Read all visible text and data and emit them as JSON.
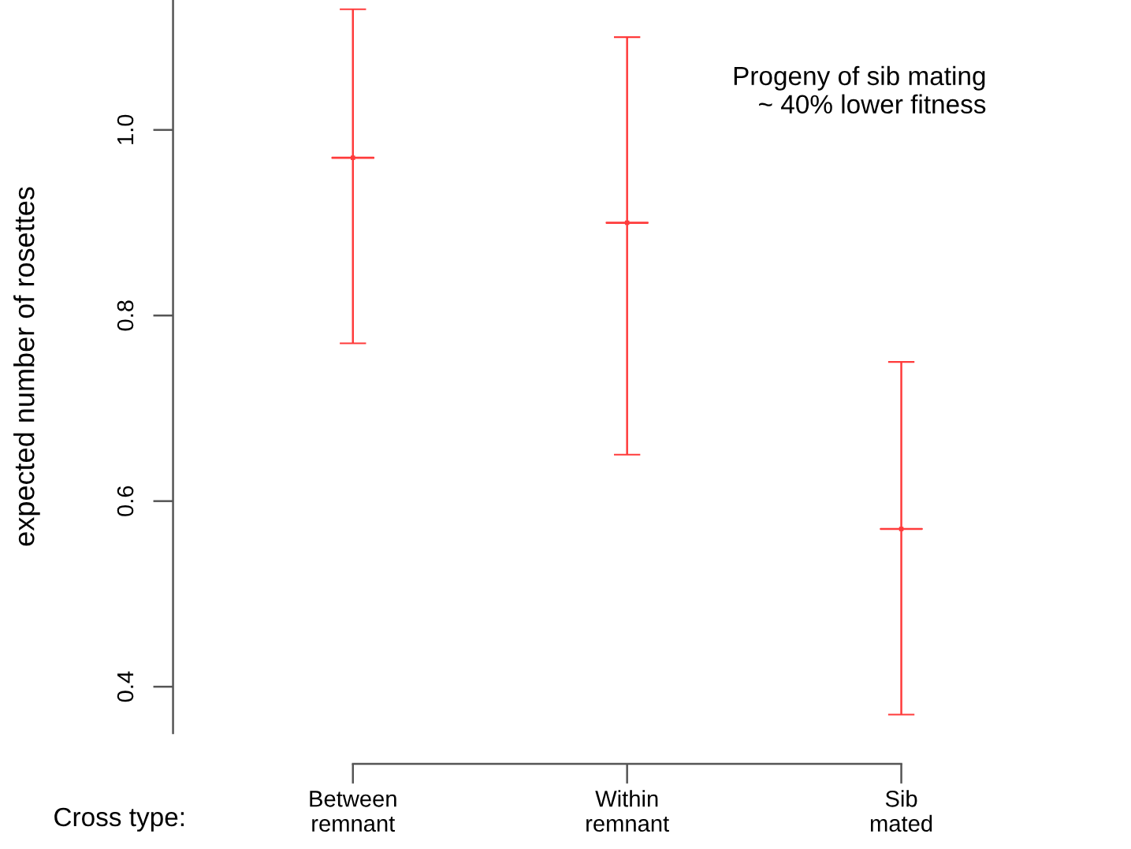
{
  "chart_data": {
    "type": "scatter",
    "ylabel": "expected number of rosettes",
    "categories": [
      "Between\nremnant",
      "Within\nremnant",
      "Sib\nmated"
    ],
    "series": [
      {
        "color": "#ff3b3b",
        "values": [
          0.97,
          0.9,
          0.57
        ],
        "errors": [
          [
            0.77,
            1.13
          ],
          [
            0.65,
            1.1
          ],
          [
            0.37,
            0.75
          ]
        ]
      }
    ],
    "ylim": [
      0.35,
      1.14
    ],
    "yticks": [
      0.4,
      0.6,
      0.8,
      {
        "value": 1.0,
        "label": "1.0"
      }
    ],
    "grid": false,
    "legend": false,
    "marker": "square",
    "annotations": [
      "Cross type:",
      "Progeny of sib mating\n~ 40% lower fitness"
    ]
  }
}
